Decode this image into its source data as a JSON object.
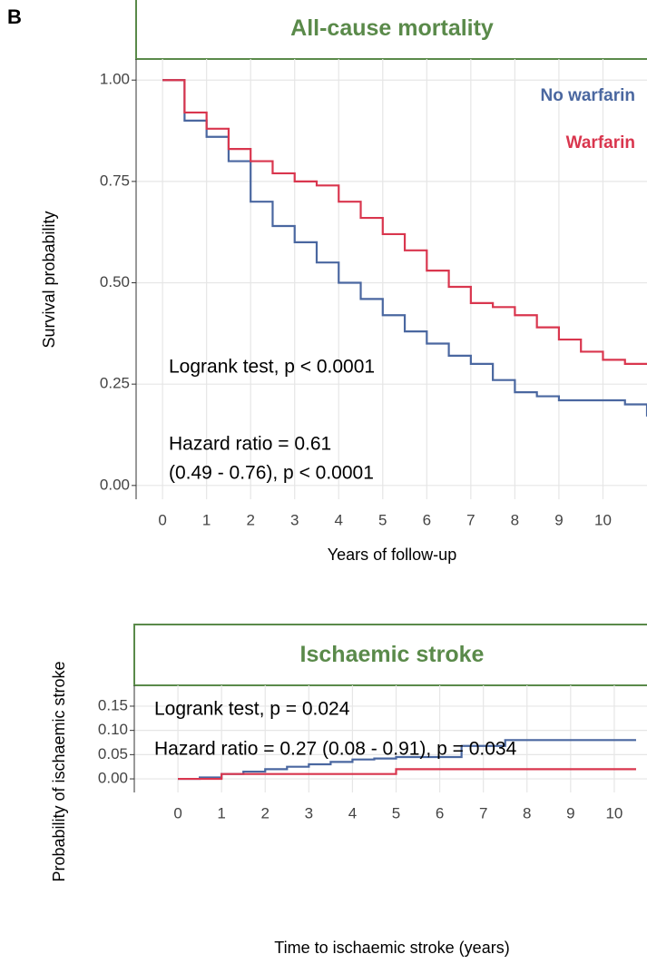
{
  "panel_label": "B",
  "chart_data": [
    {
      "type": "line",
      "step": true,
      "title": "All-cause mortality",
      "x_label": "Years of follow-up",
      "y_label": "Survival probability",
      "x": [
        0,
        0.5,
        1,
        1.5,
        2,
        2.5,
        3,
        3.5,
        4,
        4.5,
        5,
        5.5,
        6,
        6.5,
        7,
        7.5,
        8,
        8.5,
        9,
        9.5,
        10,
        10.5,
        11
      ],
      "series": [
        {
          "name": "No warfarin",
          "color": "#4a67a0",
          "values": [
            1.0,
            0.9,
            0.86,
            0.8,
            0.7,
            0.64,
            0.6,
            0.55,
            0.5,
            0.46,
            0.42,
            0.38,
            0.35,
            0.32,
            0.3,
            0.26,
            0.23,
            0.22,
            0.21,
            0.21,
            0.21,
            0.2,
            0.17
          ]
        },
        {
          "name": "Warfarin",
          "color": "#d9364e",
          "values": [
            1.0,
            0.92,
            0.88,
            0.83,
            0.8,
            0.77,
            0.75,
            0.74,
            0.7,
            0.66,
            0.62,
            0.58,
            0.53,
            0.49,
            0.45,
            0.44,
            0.42,
            0.39,
            0.36,
            0.33,
            0.31,
            0.3,
            0.3
          ]
        }
      ],
      "xlim": [
        -0.6,
        11
      ],
      "xticks": [
        0,
        1,
        2,
        3,
        4,
        5,
        6,
        7,
        8,
        9,
        10
      ],
      "ylim": [
        -0.034,
        1.052
      ],
      "yticks": [
        {
          "value": 0,
          "label": "0.00"
        },
        {
          "value": 0.25,
          "label": "0.25"
        },
        {
          "value": 0.5,
          "label": "0.50"
        },
        {
          "value": 0.75,
          "label": "0.75"
        },
        {
          "value": 1,
          "label": "1.00"
        }
      ],
      "grid": true,
      "legend": "top right",
      "annotations": [
        "Logrank test, p < 0.0001",
        "Hazard ratio = 0.61",
        "(0.49 - 0.76), p < 0.0001"
      ]
    },
    {
      "type": "line",
      "step": true,
      "title": "Ischaemic stroke",
      "x_label": "Time to ischaemic stroke (years)",
      "y_label": "Probability of ischaemic stroke",
      "x": [
        0,
        0.5,
        1,
        1.5,
        2,
        2.5,
        3,
        3.5,
        4,
        4.5,
        5,
        5.5,
        6,
        6.5,
        7,
        7.5,
        8,
        8.5,
        9,
        9.5,
        10,
        10.5
      ],
      "series": [
        {
          "color": "#4a67a0",
          "values": [
            0,
            0.003,
            0.01,
            0.015,
            0.02,
            0.025,
            0.03,
            0.035,
            0.04,
            0.042,
            0.045,
            0.045,
            0.045,
            0.068,
            0.068,
            0.08,
            0.08,
            0.08,
            0.08,
            0.08,
            0.08,
            0.08
          ]
        },
        {
          "color": "#d9364e",
          "values": [
            0,
            0,
            0.01,
            0.01,
            0.01,
            0.01,
            0.01,
            0.01,
            0.01,
            0.01,
            0.02,
            0.02,
            0.02,
            0.02,
            0.02,
            0.02,
            0.02,
            0.02,
            0.02,
            0.02,
            0.02,
            0.02
          ]
        }
      ],
      "xlim": [
        -1,
        10.75
      ],
      "xticks": [
        0,
        1,
        2,
        3,
        4,
        5,
        6,
        7,
        8,
        9,
        10
      ],
      "ylim": [
        -0.028,
        0.193
      ],
      "yticks": [
        {
          "value": 0,
          "label": "0.00"
        },
        {
          "value": 0.05,
          "label": "0.05"
        },
        {
          "value": 0.1,
          "label": "0.10"
        },
        {
          "value": 0.15,
          "label": "0.15"
        }
      ],
      "grid": true,
      "annotations": [
        "Logrank test, p = 0.024",
        "Hazard ratio = 0.27 (0.08 - 0.91), p = 0.034"
      ]
    }
  ]
}
